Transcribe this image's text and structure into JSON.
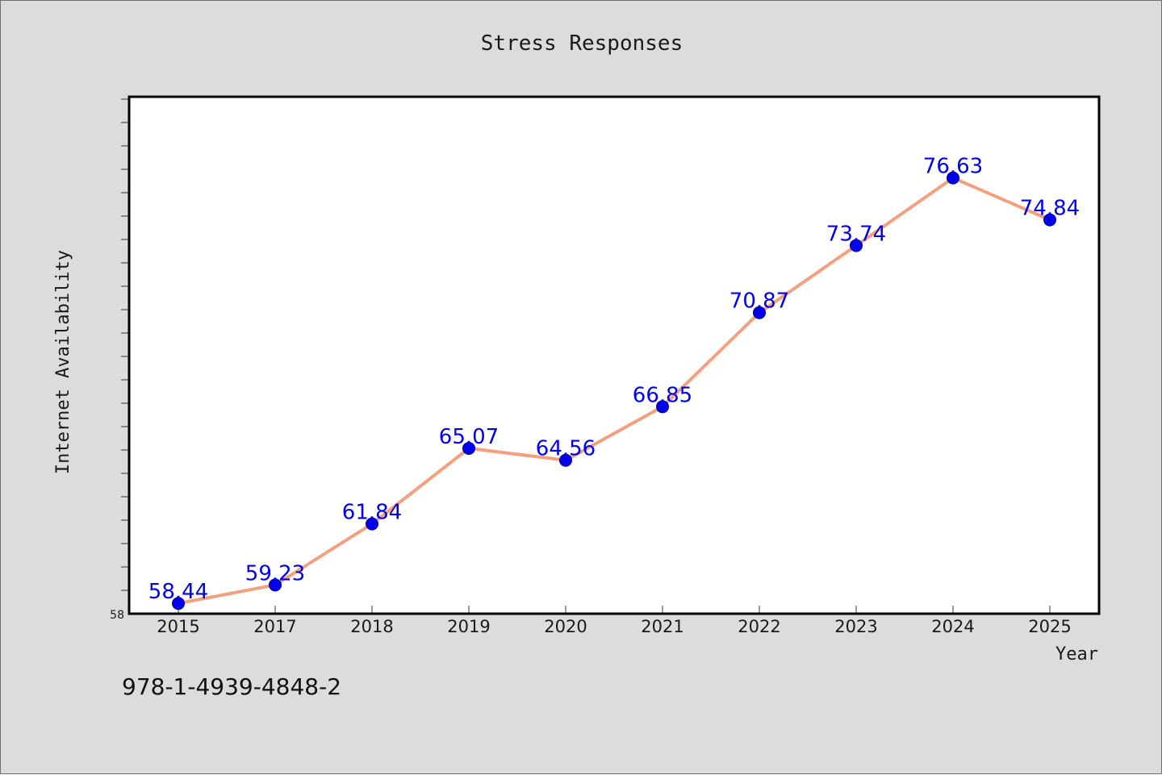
{
  "chart_data": {
    "type": "line",
    "title": "Stress Responses",
    "xlabel": "Year",
    "ylabel": "Internet Availability",
    "categories": [
      "2015",
      "2017",
      "2018",
      "2019",
      "2020",
      "2021",
      "2022",
      "2023",
      "2024",
      "2025"
    ],
    "series": [
      {
        "values": [
          58.44,
          59.23,
          61.84,
          65.07,
          64.56,
          66.85,
          70.87,
          73.74,
          76.63,
          74.84
        ]
      }
    ],
    "data_labels": [
      "58.44",
      "59.23",
      "61.84",
      "65.07",
      "64.56",
      "66.85",
      "70.87",
      "73.74",
      "76.63",
      "74.84"
    ],
    "y_tick_labels": [
      "58"
    ],
    "ylim": [
      58,
      80.1
    ],
    "y_minor_tick_step": 1,
    "grid": false,
    "legend": "none",
    "colors": {
      "line": "#f4a07e",
      "marker": "#0000ee",
      "data_label": "#0000ee",
      "figure_background": "#dcdcdc",
      "plot_background": "#ffffff"
    }
  },
  "footnote": "978-1-4939-4848-2"
}
